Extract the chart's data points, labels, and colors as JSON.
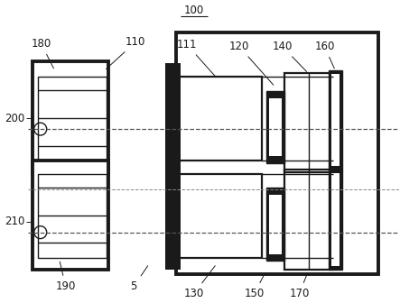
{
  "bg_color": "#ffffff",
  "line_color": "#1a1a1a",
  "lw_thick": 2.8,
  "lw_medium": 1.6,
  "lw_thin": 1.0,
  "fig_w": 4.43,
  "fig_h": 3.36,
  "label_fontsize": 8.5
}
